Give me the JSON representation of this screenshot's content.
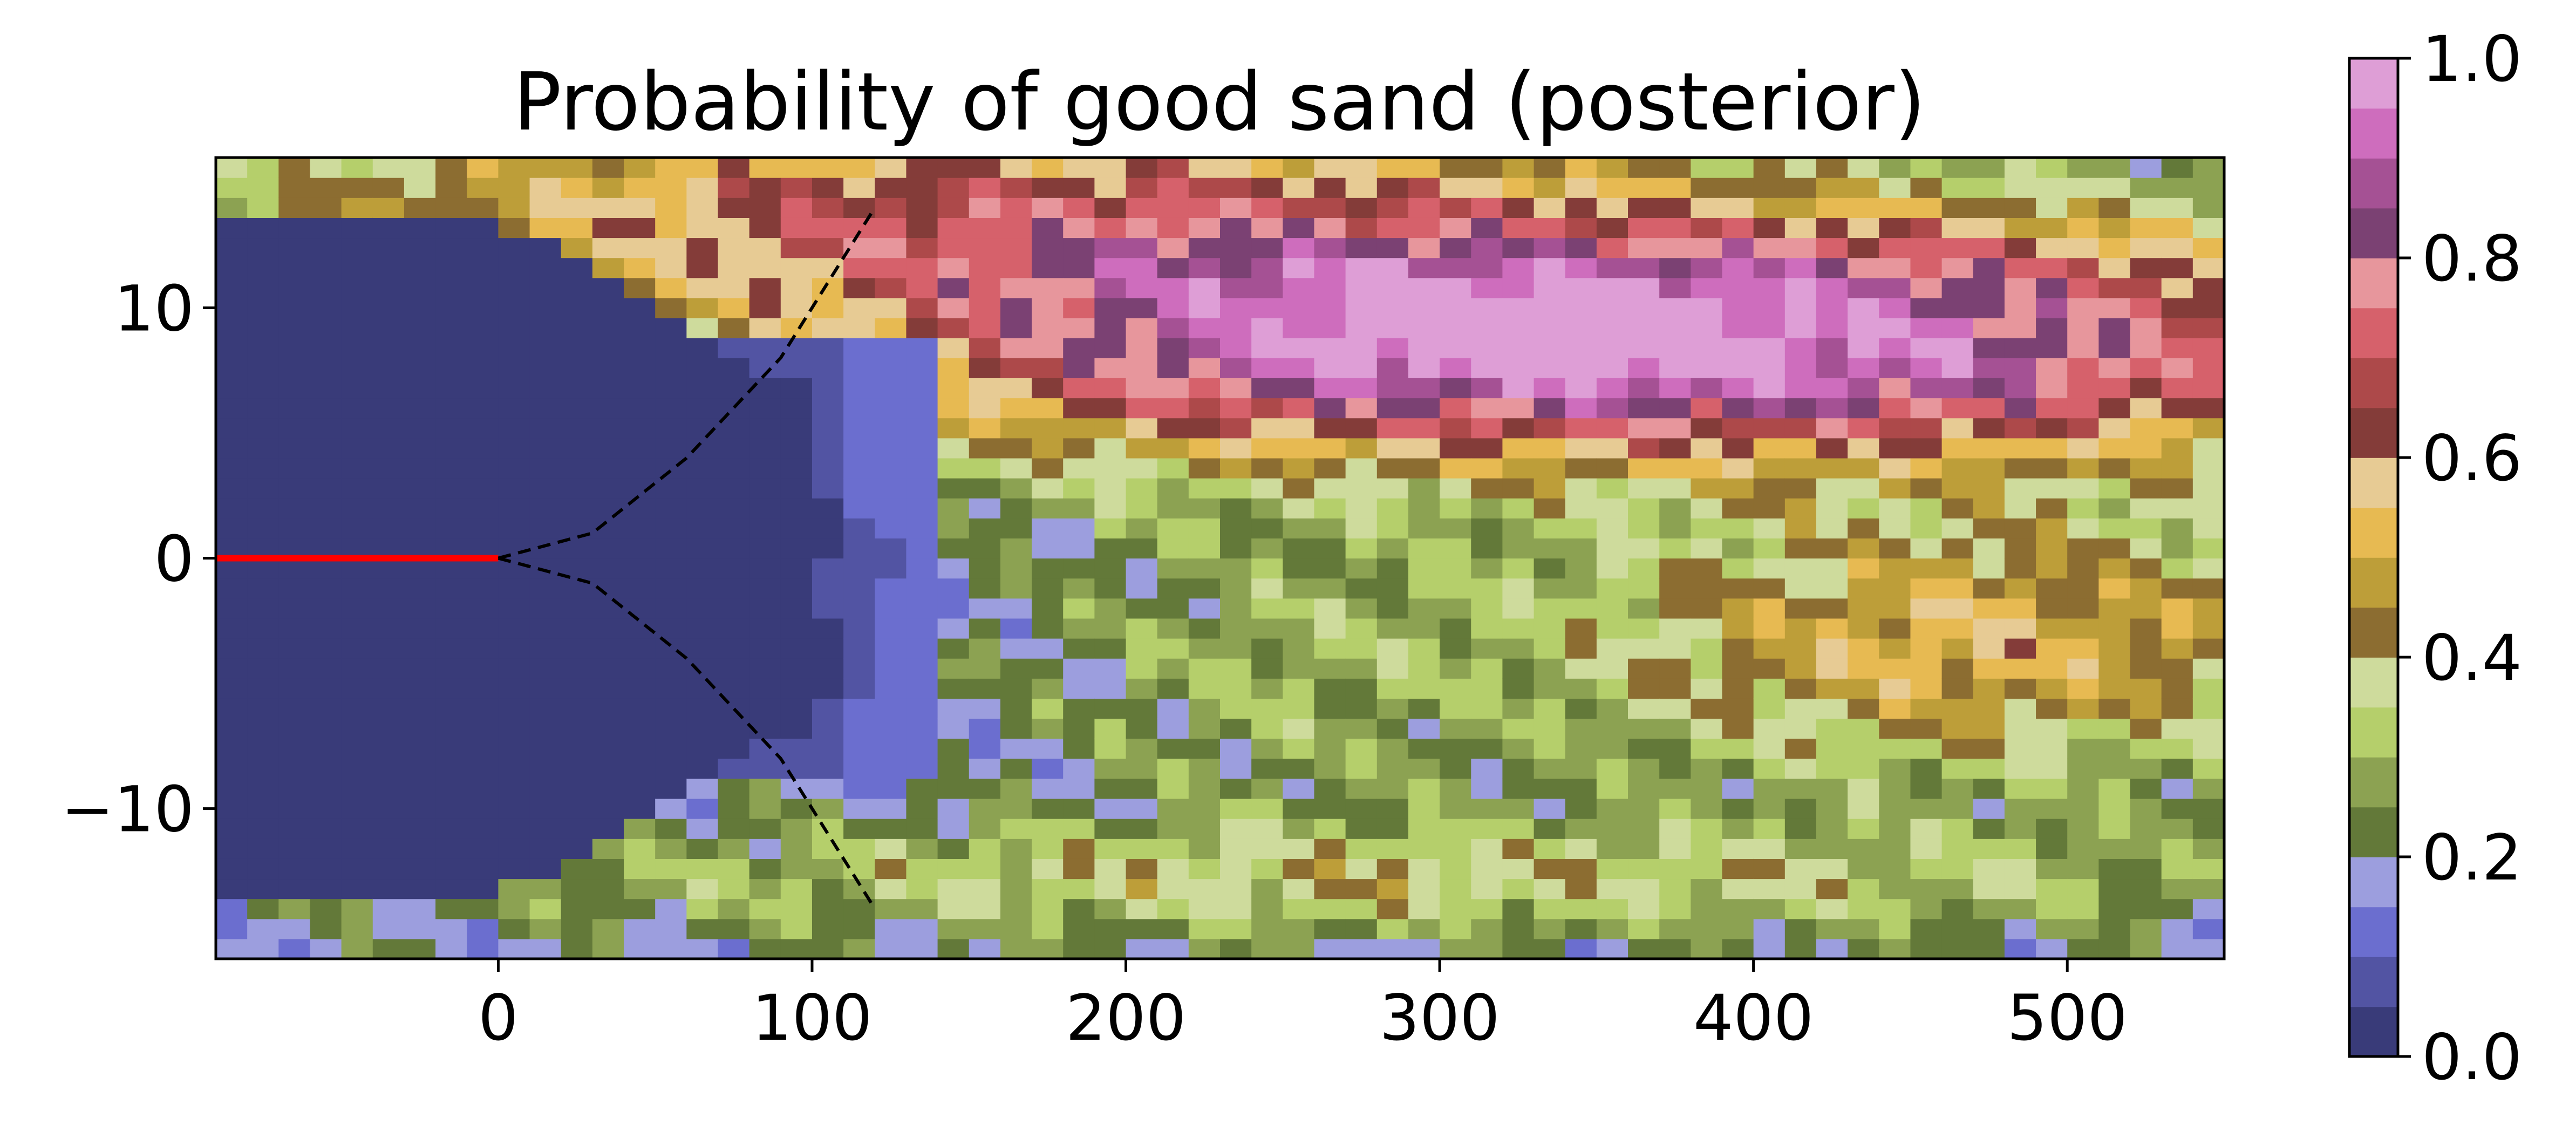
{
  "chart_data": {
    "type": "heatmap",
    "title": "Probability of good sand (posterior)",
    "xlabel": "",
    "ylabel": "",
    "xlim": [
      -90,
      550
    ],
    "ylim": [
      -16,
      16
    ],
    "x_ticks": [
      0,
      100,
      200,
      300,
      400,
      500
    ],
    "x_tick_labels": [
      "0",
      "100",
      "200",
      "300",
      "400",
      "500"
    ],
    "y_ticks": [
      10,
      0,
      -10
    ],
    "y_tick_labels": [
      "10",
      "0",
      "−10"
    ],
    "colorbar": {
      "range": [
        0,
        1
      ],
      "ticks": [
        0,
        0.2,
        0.4,
        0.6,
        0.8,
        1.0
      ],
      "tick_labels": [
        "0.0",
        "0.2",
        "0.4",
        "0.6",
        "0.8",
        "1.0"
      ],
      "colormap": "tab20b",
      "colors": [
        "#393b79",
        "#5254a3",
        "#6b6ecf",
        "#9c9ede",
        "#637939",
        "#8ca252",
        "#b5cf6b",
        "#cedb9c",
        "#8c6d31",
        "#bd9e39",
        "#e7ba52",
        "#e7cb94",
        "#843c39",
        "#ad494a",
        "#d6616b",
        "#e7969c",
        "#7b4173",
        "#a55194",
        "#ce6dbd",
        "#de9ed6"
      ]
    },
    "well_line": {
      "color": "#ff0000",
      "x": [
        -90,
        0
      ],
      "y": [
        0,
        0
      ]
    },
    "cone_upper": {
      "x": [
        0,
        30,
        60,
        90,
        120
      ],
      "y": [
        0,
        1,
        4,
        8,
        14
      ]
    },
    "cone_lower": {
      "x": [
        0,
        30,
        60,
        90,
        120
      ],
      "y": [
        0,
        -1,
        -4,
        -8,
        -14
      ]
    },
    "grid": false
  }
}
